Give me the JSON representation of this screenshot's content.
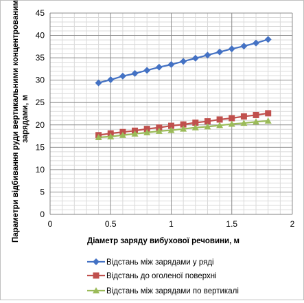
{
  "chart_data": {
    "type": "line",
    "title": "",
    "xlabel": "Діаметр заряду вибухової речовини, м",
    "ylabel_lines": [
      "Параметри відбивання руди вертикальними концентрованими",
      "зарядами, м"
    ],
    "xlim": [
      0,
      2
    ],
    "ylim": [
      0,
      45
    ],
    "x_ticks": [
      0,
      0.5,
      1,
      1.5,
      2
    ],
    "x_tick_labels": [
      "0",
      "0.5",
      "1",
      "1.5",
      "2"
    ],
    "y_ticks": [
      0,
      5,
      10,
      15,
      20,
      25,
      30,
      35,
      40,
      45
    ],
    "y_tick_labels": [
      "0",
      "5",
      "10",
      "15",
      "20",
      "25",
      "30",
      "35",
      "40",
      "45"
    ],
    "grid": true,
    "legend_position": "bottom",
    "x": [
      0.4,
      0.5,
      0.6,
      0.7,
      0.8,
      0.9,
      1.0,
      1.1,
      1.2,
      1.3,
      1.4,
      1.5,
      1.6,
      1.7,
      1.8
    ],
    "series": [
      {
        "name": "Відстань між зарядами у ряді",
        "color": "#4472c4",
        "marker": "diamond",
        "values": [
          29.4,
          30.1,
          30.9,
          31.5,
          32.2,
          32.9,
          33.5,
          34.2,
          34.9,
          35.6,
          36.3,
          37.0,
          37.6,
          38.3,
          39.1
        ]
      },
      {
        "name": "Відстань до оголеної поверхні",
        "color": "#c0504d",
        "marker": "square",
        "values": [
          17.7,
          18.1,
          18.4,
          18.7,
          19.1,
          19.4,
          19.8,
          20.1,
          20.5,
          20.8,
          21.2,
          21.5,
          21.9,
          22.2,
          22.6
        ]
      },
      {
        "name": "Відстань між зарядами по вертикалі",
        "color": "#9bbb59",
        "marker": "triangle",
        "values": [
          17.2,
          17.4,
          17.7,
          18.0,
          18.3,
          18.6,
          18.8,
          19.1,
          19.4,
          19.6,
          19.9,
          20.2,
          20.4,
          20.7,
          20.9
        ]
      }
    ]
  }
}
